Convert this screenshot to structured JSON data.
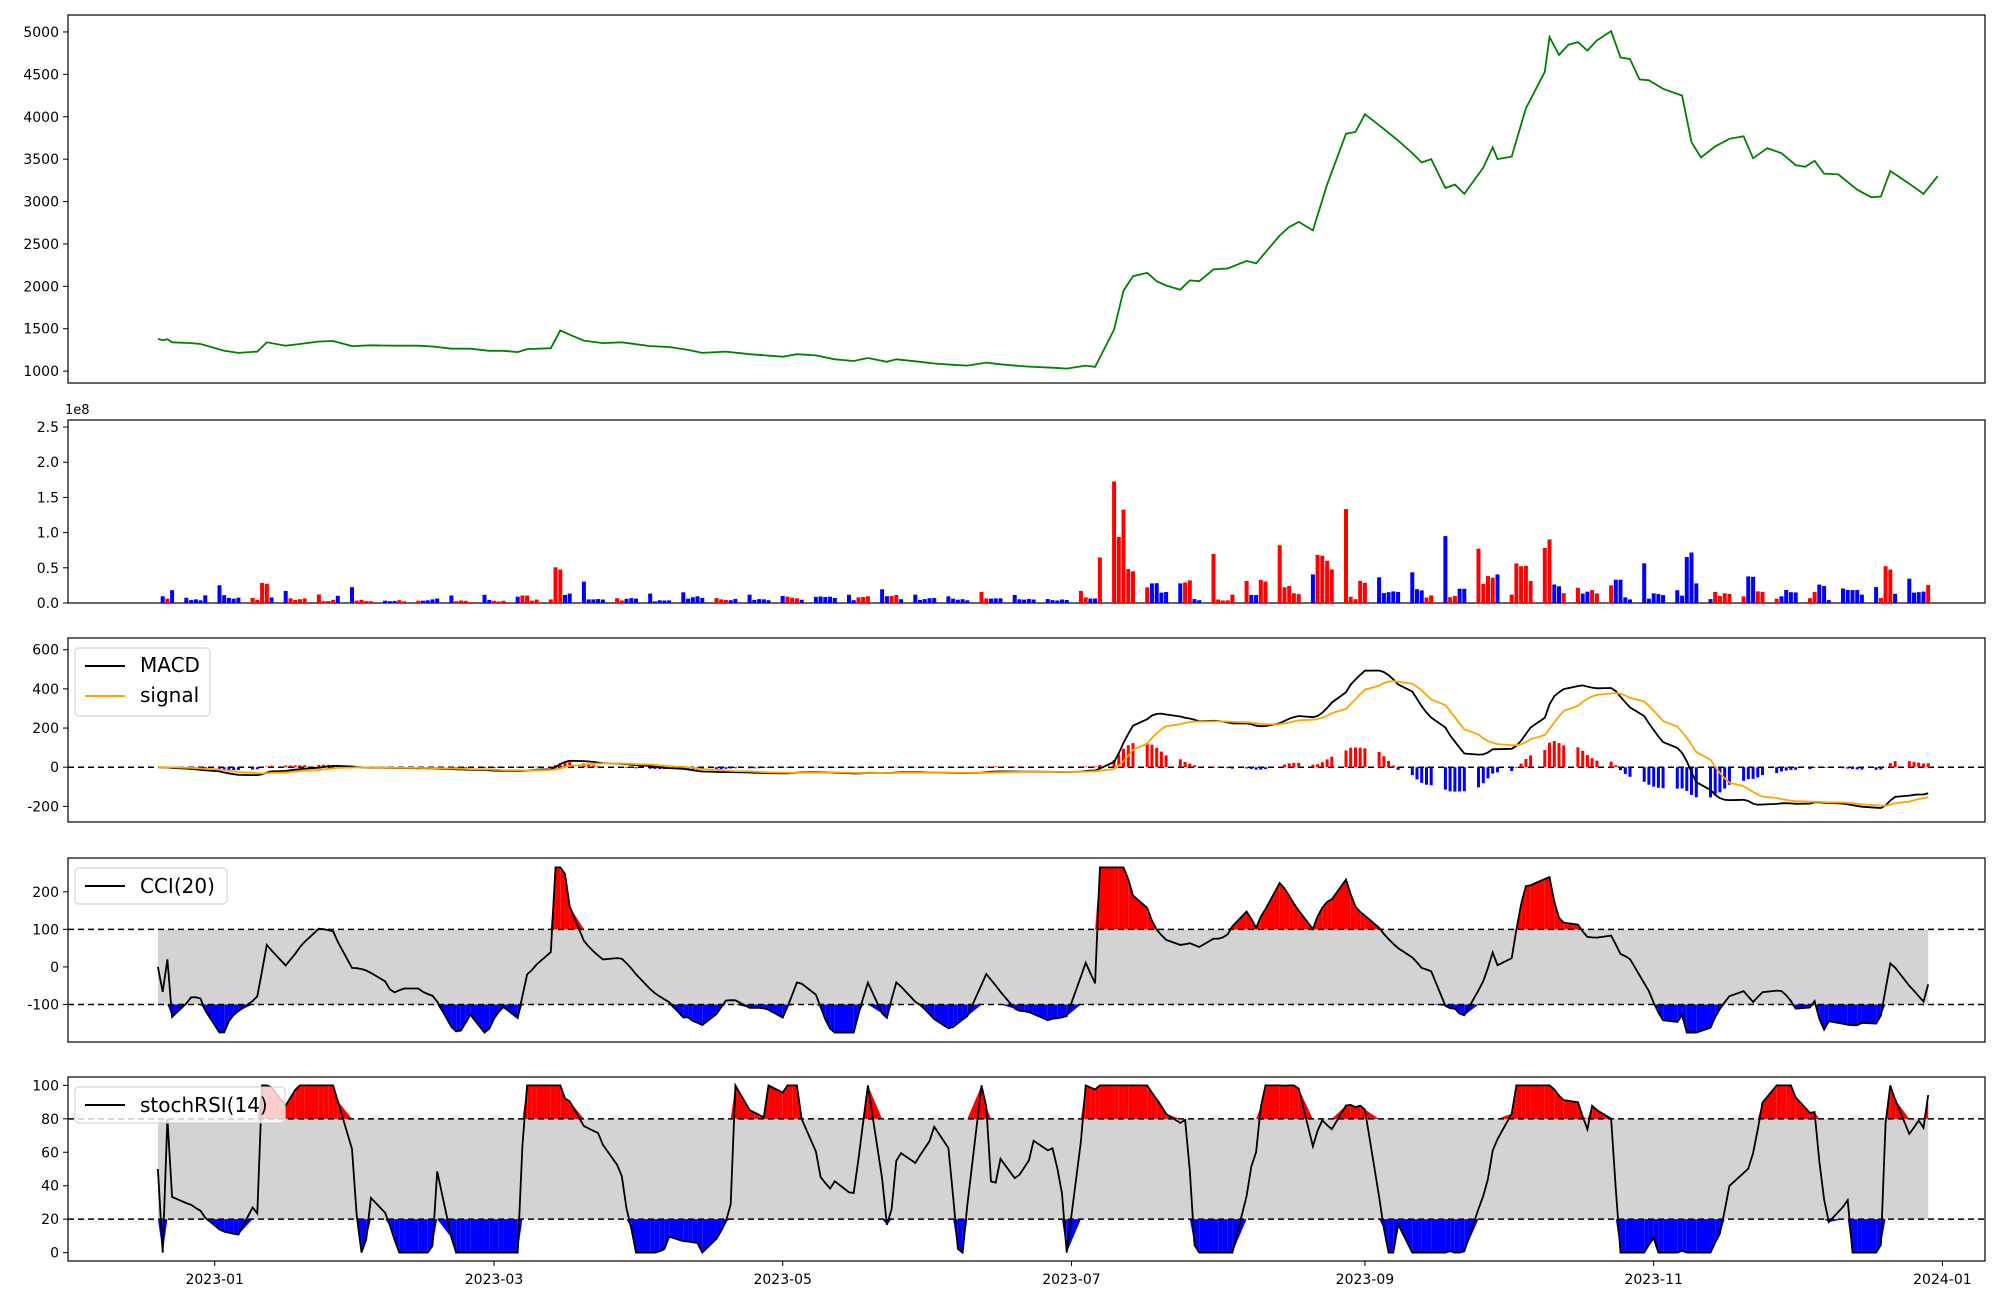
{
  "chart_data": [
    {
      "type": "line",
      "panel": "price",
      "color": "#008000",
      "x_range": [
        "2022-12-01",
        "2024-01-10"
      ],
      "ylim": [
        860,
        5200
      ],
      "yticks": [
        1000,
        1500,
        2000,
        2500,
        3000,
        3500,
        4000,
        4500,
        5000
      ],
      "points": [
        [
          "2022-12-20",
          1380
        ],
        [
          "2022-12-21",
          1365
        ],
        [
          "2022-12-22",
          1375
        ],
        [
          "2022-12-23",
          1340
        ],
        [
          "2022-12-27",
          1330
        ],
        [
          "2022-12-29",
          1320
        ],
        [
          "2023-01-03",
          1240
        ],
        [
          "2023-01-06",
          1215
        ],
        [
          "2023-01-10",
          1230
        ],
        [
          "2023-01-12",
          1340
        ],
        [
          "2023-01-16",
          1300
        ],
        [
          "2023-01-19",
          1320
        ],
        [
          "2023-01-23",
          1350
        ],
        [
          "2023-01-26",
          1355
        ],
        [
          "2023-01-30",
          1295
        ],
        [
          "2023-02-03",
          1305
        ],
        [
          "2023-02-08",
          1300
        ],
        [
          "2023-02-13",
          1300
        ],
        [
          "2023-02-16",
          1290
        ],
        [
          "2023-02-20",
          1265
        ],
        [
          "2023-02-24",
          1265
        ],
        [
          "2023-02-28",
          1240
        ],
        [
          "2023-03-03",
          1240
        ],
        [
          "2023-03-06",
          1225
        ],
        [
          "2023-03-08",
          1260
        ],
        [
          "2023-03-13",
          1270
        ],
        [
          "2023-03-15",
          1480
        ],
        [
          "2023-03-17",
          1430
        ],
        [
          "2023-03-20",
          1360
        ],
        [
          "2023-03-24",
          1330
        ],
        [
          "2023-03-28",
          1340
        ],
        [
          "2023-04-03",
          1295
        ],
        [
          "2023-04-07",
          1285
        ],
        [
          "2023-04-11",
          1250
        ],
        [
          "2023-04-14",
          1215
        ],
        [
          "2023-04-19",
          1230
        ],
        [
          "2023-04-24",
          1200
        ],
        [
          "2023-05-01",
          1170
        ],
        [
          "2023-05-04",
          1200
        ],
        [
          "2023-05-08",
          1185
        ],
        [
          "2023-05-12",
          1140
        ],
        [
          "2023-05-16",
          1120
        ],
        [
          "2023-05-19",
          1155
        ],
        [
          "2023-05-23",
          1110
        ],
        [
          "2023-05-25",
          1140
        ],
        [
          "2023-05-30",
          1110
        ],
        [
          "2023-06-02",
          1090
        ],
        [
          "2023-06-06",
          1075
        ],
        [
          "2023-06-09",
          1065
        ],
        [
          "2023-06-13",
          1100
        ],
        [
          "2023-06-16",
          1080
        ],
        [
          "2023-06-20",
          1060
        ],
        [
          "2023-06-23",
          1050
        ],
        [
          "2023-06-27",
          1040
        ],
        [
          "2023-06-30",
          1030
        ],
        [
          "2023-07-04",
          1065
        ],
        [
          "2023-07-06",
          1050
        ],
        [
          "2023-07-10",
          1490
        ],
        [
          "2023-07-12",
          1950
        ],
        [
          "2023-07-14",
          2120
        ],
        [
          "2023-07-17",
          2160
        ],
        [
          "2023-07-19",
          2060
        ],
        [
          "2023-07-21",
          2010
        ],
        [
          "2023-07-24",
          1960
        ],
        [
          "2023-07-26",
          2070
        ],
        [
          "2023-07-28",
          2060
        ],
        [
          "2023-07-31",
          2200
        ],
        [
          "2023-08-03",
          2210
        ],
        [
          "2023-08-07",
          2300
        ],
        [
          "2023-08-09",
          2270
        ],
        [
          "2023-08-14",
          2600
        ],
        [
          "2023-08-16",
          2700
        ],
        [
          "2023-08-18",
          2760
        ],
        [
          "2023-08-21",
          2660
        ],
        [
          "2023-08-24",
          3200
        ],
        [
          "2023-08-28",
          3800
        ],
        [
          "2023-08-30",
          3820
        ],
        [
          "2023-09-01",
          4030
        ],
        [
          "2023-09-04",
          3900
        ],
        [
          "2023-09-08",
          3720
        ],
        [
          "2023-09-11",
          3570
        ],
        [
          "2023-09-13",
          3460
        ],
        [
          "2023-09-15",
          3500
        ],
        [
          "2023-09-18",
          3160
        ],
        [
          "2023-09-20",
          3200
        ],
        [
          "2023-09-22",
          3090
        ],
        [
          "2023-09-26",
          3400
        ],
        [
          "2023-09-28",
          3640
        ],
        [
          "2023-09-29",
          3500
        ],
        [
          "2023-10-02",
          3530
        ],
        [
          "2023-10-05",
          4100
        ],
        [
          "2023-10-09",
          4530
        ],
        [
          "2023-10-10",
          4940
        ],
        [
          "2023-10-12",
          4730
        ],
        [
          "2023-10-14",
          4850
        ],
        [
          "2023-10-16",
          4880
        ],
        [
          "2023-10-18",
          4780
        ],
        [
          "2023-10-20",
          4900
        ],
        [
          "2023-10-23",
          5010
        ],
        [
          "2023-10-25",
          4700
        ],
        [
          "2023-10-27",
          4680
        ],
        [
          "2023-10-29",
          4440
        ],
        [
          "2023-10-31",
          4430
        ],
        [
          "2023-11-03",
          4330
        ],
        [
          "2023-11-07",
          4250
        ],
        [
          "2023-11-09",
          3700
        ],
        [
          "2023-11-11",
          3520
        ],
        [
          "2023-11-14",
          3650
        ],
        [
          "2023-11-17",
          3740
        ],
        [
          "2023-11-20",
          3770
        ],
        [
          "2023-11-22",
          3510
        ],
        [
          "2023-11-25",
          3630
        ],
        [
          "2023-11-28",
          3570
        ],
        [
          "2023-12-01",
          3430
        ],
        [
          "2023-12-03",
          3410
        ],
        [
          "2023-12-05",
          3480
        ],
        [
          "2023-12-07",
          3330
        ],
        [
          "2023-12-10",
          3320
        ],
        [
          "2023-12-14",
          3140
        ],
        [
          "2023-12-17",
          3050
        ],
        [
          "2023-12-19",
          3060
        ],
        [
          "2023-12-21",
          3360
        ],
        [
          "2023-12-25",
          3210
        ],
        [
          "2023-12-28",
          3090
        ],
        [
          "2023-12-31",
          3300
        ]
      ]
    }
  ],
  "panels": {
    "price": {
      "name": "price",
      "offset_label": ""
    },
    "volume": {
      "offset_label": "1e8",
      "ylim": [
        0,
        2.6
      ],
      "yticks": [
        "0.0",
        "0.5",
        "1.0",
        "1.5",
        "2.0",
        "2.5"
      ],
      "up_color": "#ff0000",
      "down_color": "#0000ff"
    },
    "macd": {
      "ylim": [
        -280,
        660
      ],
      "yticks": [
        -200,
        0,
        200,
        400,
        600
      ],
      "legend": [
        "MACD",
        "signal"
      ],
      "macd_color": "#000000",
      "signal_color": "#ffa500"
    },
    "cci": {
      "ylim": [
        -200,
        290
      ],
      "yticks": [
        -100,
        0,
        100,
        200
      ],
      "legend": [
        "CCI(20)"
      ],
      "upper": 100,
      "lower": -100
    },
    "stochrsi": {
      "ylim": [
        -5,
        105
      ],
      "yticks": [
        0,
        20,
        40,
        60,
        80,
        100
      ],
      "legend": [
        "stochRSI(14)"
      ],
      "upper": 80,
      "lower": 20
    }
  },
  "x_axis": {
    "tick_labels": [
      "2023-01",
      "2023-03",
      "2023-05",
      "2023-07",
      "2023-09",
      "2023-11",
      "2024-01"
    ]
  }
}
